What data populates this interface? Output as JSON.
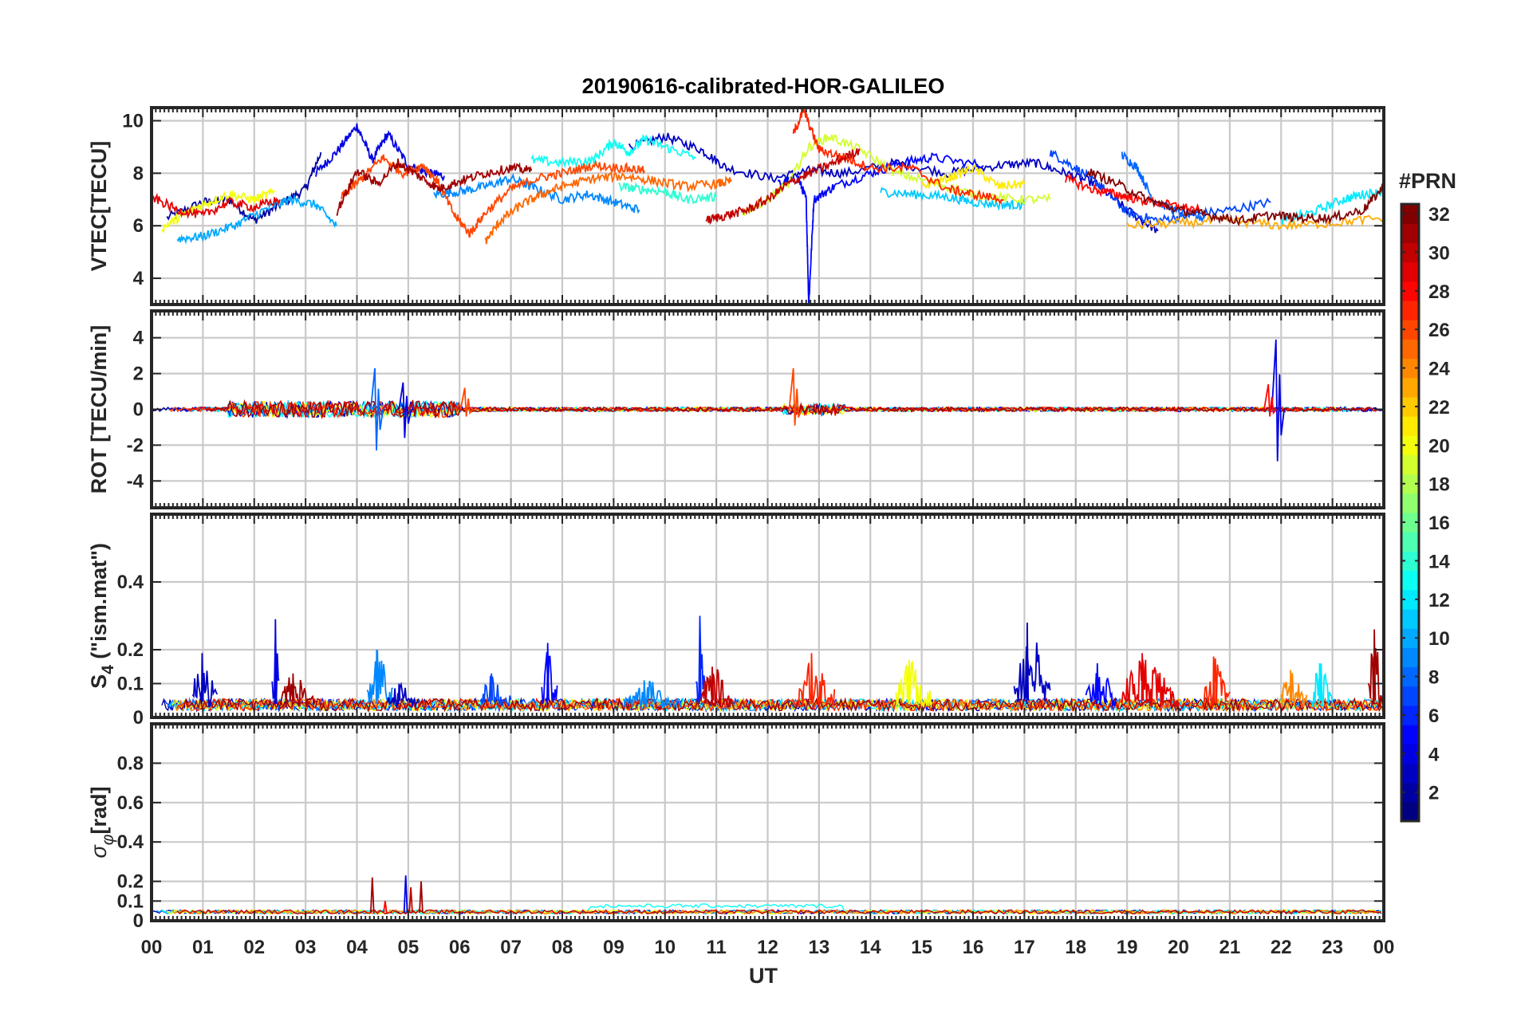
{
  "figure": {
    "title": "20190616-calibrated-HOR-GALILEO",
    "xlabel": "UT",
    "x_ticks": [
      "00",
      "01",
      "02",
      "03",
      "04",
      "05",
      "06",
      "07",
      "08",
      "09",
      "10",
      "11",
      "12",
      "13",
      "14",
      "15",
      "16",
      "17",
      "18",
      "19",
      "20",
      "21",
      "22",
      "23",
      "00"
    ]
  },
  "chart_data": [
    {
      "type": "line",
      "name": "vtec",
      "ylabel": "VTEC[TECU]",
      "xlim": [
        0,
        24
      ],
      "ylim": [
        3,
        10.5
      ],
      "yticks": [
        4,
        6,
        8,
        10
      ],
      "ytick_labels": [
        "4",
        "6",
        "8",
        "10"
      ],
      "grid": true,
      "series": [
        {
          "prn": 2,
          "x": [
            0.3,
            1.0,
            1.5,
            2.0,
            2.5,
            3.0,
            3.3
          ],
          "y": [
            6.3,
            6.9,
            7.0,
            6.2,
            6.8,
            7.4,
            8.8
          ]
        },
        {
          "prn": 4,
          "x": [
            3.2,
            3.6,
            4.0,
            4.3,
            4.6,
            5.0,
            5.4,
            5.7
          ],
          "y": [
            8.0,
            8.8,
            9.8,
            8.5,
            9.5,
            8.3,
            8.0,
            7.9
          ]
        },
        {
          "prn": 3,
          "x": [
            9.3,
            10.0,
            10.7,
            11.2,
            12.1,
            12.8,
            13.5,
            14.5,
            15.5,
            16.5,
            17.2,
            17.8,
            18.4,
            19.0,
            19.6
          ],
          "y": [
            9.0,
            9.4,
            8.9,
            8.2,
            7.8,
            8.1,
            8.0,
            8.4,
            8.0,
            8.3,
            8.4,
            8.0,
            7.6,
            6.6,
            5.8
          ]
        },
        {
          "prn": 5,
          "x": [
            12.2,
            12.6,
            12.75,
            12.8,
            12.9,
            13.3,
            14.0,
            14.6,
            15.2,
            16.2
          ],
          "y": [
            7.6,
            7.8,
            7.0,
            3.0,
            7.0,
            7.5,
            8.0,
            8.4,
            8.6,
            8.3
          ]
        },
        {
          "prn": 7,
          "x": [
            17.5,
            18.0,
            18.5,
            19.0,
            19.6,
            20.2,
            21.0,
            21.8
          ],
          "y": [
            8.8,
            8.2,
            7.5,
            6.5,
            6.2,
            6.4,
            6.6,
            6.9
          ]
        },
        {
          "prn": 9,
          "x": [
            5.5,
            6.0,
            6.5,
            7.0,
            7.5,
            8.0,
            8.5,
            9.0,
            9.5
          ],
          "y": [
            7.2,
            7.3,
            7.5,
            7.8,
            7.4,
            7.0,
            7.2,
            6.9,
            6.6
          ]
        },
        {
          "prn": 8,
          "x": [
            18.9,
            19.2,
            19.5,
            20.0,
            20.5
          ],
          "y": [
            8.7,
            8.2,
            7.0,
            6.5,
            6.3
          ]
        },
        {
          "prn": 10,
          "x": [
            0.5,
            1.0,
            1.6,
            2.2,
            2.7,
            3.2,
            3.6
          ],
          "y": [
            5.5,
            5.6,
            6.0,
            6.6,
            7.0,
            6.8,
            6.0
          ]
        },
        {
          "prn": 11,
          "x": [
            14.2,
            14.8,
            15.5,
            16.0,
            16.6,
            17.0
          ],
          "y": [
            7.3,
            7.2,
            7.1,
            6.9,
            6.8,
            6.8
          ]
        },
        {
          "prn": 12,
          "x": [
            22.0,
            22.6,
            23.2,
            23.6,
            24.0
          ],
          "y": [
            6.2,
            6.5,
            7.0,
            7.2,
            7.3
          ]
        },
        {
          "prn": 13,
          "x": [
            7.4,
            8.0,
            8.6,
            9.0,
            9.3,
            9.6,
            10.0,
            10.6
          ],
          "y": [
            8.5,
            8.4,
            8.5,
            9.2,
            8.8,
            9.3,
            9.0,
            8.6
          ]
        },
        {
          "prn": 14,
          "x": [
            9.1,
            9.5,
            10.0,
            10.4,
            11.0
          ],
          "y": [
            7.5,
            7.4,
            7.3,
            7.0,
            7.1
          ]
        },
        {
          "prn": 20,
          "x": [
            0.2,
            0.6,
            1.0,
            1.5,
            2.0,
            2.4
          ],
          "y": [
            5.9,
            6.4,
            6.8,
            7.2,
            7.0,
            7.3
          ]
        },
        {
          "prn": 19,
          "x": [
            11.5,
            12.0,
            12.4,
            12.8,
            13.2,
            13.8,
            14.5,
            15.3,
            16.0,
            16.8,
            17.5
          ],
          "y": [
            6.5,
            7.0,
            7.6,
            9.0,
            9.4,
            8.9,
            8.0,
            7.6,
            7.2,
            7.0,
            7.0
          ]
        },
        {
          "prn": 21,
          "x": [
            15.0,
            15.5,
            16.0,
            16.5,
            17.0
          ],
          "y": [
            7.5,
            7.8,
            8.2,
            7.5,
            7.6
          ]
        },
        {
          "prn": 23,
          "x": [
            19.0,
            20.0,
            21.0,
            22.0,
            23.0,
            24.0
          ],
          "y": [
            6.0,
            6.1,
            6.2,
            6.0,
            6.1,
            6.3
          ]
        },
        {
          "prn": 25,
          "x": [
            6.5,
            6.8,
            7.2,
            7.6,
            8.0,
            8.6,
            9.2,
            9.8,
            10.4,
            11.0,
            11.3
          ],
          "y": [
            5.4,
            6.2,
            6.8,
            7.2,
            7.5,
            7.8,
            7.9,
            7.7,
            7.5,
            7.6,
            7.7
          ]
        },
        {
          "prn": 26,
          "x": [
            3.7,
            4.1,
            4.5,
            4.9,
            5.3,
            5.6,
            5.9,
            6.2,
            6.5,
            7.0,
            7.5,
            8.0,
            8.6,
            9.2,
            9.6
          ],
          "y": [
            7.1,
            7.8,
            8.6,
            8.0,
            8.3,
            7.6,
            6.4,
            5.7,
            6.5,
            7.4,
            7.8,
            8.0,
            8.3,
            8.2,
            8.1
          ]
        },
        {
          "prn": 27,
          "x": [
            12.5,
            12.7,
            13.0,
            13.5,
            14.0,
            14.8,
            15.5,
            16.0,
            16.6
          ],
          "y": [
            9.5,
            10.4,
            8.9,
            8.6,
            8.2,
            8.2,
            7.4,
            7.2,
            7.0
          ]
        },
        {
          "prn": 28,
          "x": [
            17.8,
            18.3,
            18.8,
            19.2,
            19.8,
            20.4
          ],
          "y": [
            7.8,
            7.4,
            7.2,
            7.0,
            6.8,
            6.6
          ]
        },
        {
          "prn": 29,
          "x": [
            0.0,
            0.5,
            1.0,
            1.5,
            2.0,
            2.5
          ],
          "y": [
            7.1,
            6.6,
            6.4,
            6.9,
            6.7,
            7.0
          ]
        },
        {
          "prn": 30,
          "x": [
            10.8,
            11.2,
            11.6,
            12.0,
            12.4,
            12.8,
            13.3,
            13.8
          ],
          "y": [
            6.2,
            6.4,
            6.6,
            7.0,
            7.6,
            8.0,
            8.4,
            8.9
          ]
        },
        {
          "prn": 31,
          "x": [
            3.6,
            4.0,
            4.4,
            4.8,
            5.2,
            5.6,
            6.0,
            6.5,
            7.0,
            7.4
          ],
          "y": [
            6.5,
            8.1,
            7.6,
            8.4,
            7.9,
            7.4,
            7.7,
            8.0,
            8.2,
            8.1
          ]
        },
        {
          "prn": 32,
          "x": [
            18.2,
            18.8,
            19.4,
            20.0,
            20.6,
            21.2,
            21.8,
            22.4,
            23.0,
            23.6,
            24.0
          ],
          "y": [
            8.1,
            7.6,
            7.0,
            6.6,
            6.4,
            6.2,
            6.4,
            6.3,
            6.3,
            6.6,
            7.5
          ]
        }
      ]
    },
    {
      "type": "line",
      "name": "rot",
      "ylabel": "ROT [TECU/min]",
      "xlim": [
        0,
        24
      ],
      "ylim": [
        -5.5,
        5.5
      ],
      "yticks": [
        -4,
        -2,
        0,
        2,
        4
      ],
      "ytick_labels": [
        "-4",
        "-2",
        "0",
        "2",
        "4"
      ],
      "grid": true,
      "spikes": [
        {
          "prn": 8,
          "x": 4.35,
          "min": -2.3,
          "max": 2.3
        },
        {
          "prn": 4,
          "x": 4.9,
          "min": -1.6,
          "max": 1.5
        },
        {
          "prn": 26,
          "x": 12.5,
          "min": -0.9,
          "max": 2.3
        },
        {
          "prn": 4,
          "x": 21.9,
          "min": -2.9,
          "max": 3.9
        },
        {
          "prn": 28,
          "x": 21.75,
          "min": -0.4,
          "max": 1.4
        },
        {
          "prn": 26,
          "x": 6.1,
          "min": -0.4,
          "max": 1.2
        }
      ]
    },
    {
      "type": "line",
      "name": "s4",
      "ylabel": "S4 (\"ism.mat\")",
      "ylabel_main": "S",
      "ylabel_sub": "4",
      "ylabel_rest": " (\"ism.mat\")",
      "xlim": [
        0,
        24
      ],
      "ylim": [
        0,
        0.6
      ],
      "yticks": [
        0,
        0.1,
        0.2,
        0.4
      ],
      "ytick_labels": [
        "0",
        "0.1",
        "0.2",
        "0.4"
      ],
      "grid": true,
      "bursts": [
        {
          "prn": 3,
          "x0": 0.8,
          "x1": 1.3,
          "peak": 0.19
        },
        {
          "prn": 4,
          "x0": 2.35,
          "x1": 2.5,
          "peak": 0.29
        },
        {
          "prn": 31,
          "x0": 2.5,
          "x1": 3.2,
          "peak": 0.13
        },
        {
          "prn": 9,
          "x0": 4.2,
          "x1": 4.7,
          "peak": 0.2
        },
        {
          "prn": 3,
          "x0": 4.6,
          "x1": 5.2,
          "peak": 0.1
        },
        {
          "prn": 7,
          "x0": 6.4,
          "x1": 7.0,
          "peak": 0.13
        },
        {
          "prn": 5,
          "x0": 7.6,
          "x1": 7.9,
          "peak": 0.22
        },
        {
          "prn": 9,
          "x0": 9.2,
          "x1": 10.3,
          "peak": 0.11
        },
        {
          "prn": 6,
          "x0": 10.6,
          "x1": 10.8,
          "peak": 0.3
        },
        {
          "prn": 30,
          "x0": 10.7,
          "x1": 11.3,
          "peak": 0.15
        },
        {
          "prn": 27,
          "x0": 12.6,
          "x1": 13.3,
          "peak": 0.19
        },
        {
          "prn": 20,
          "x0": 14.5,
          "x1": 15.2,
          "peak": 0.17
        },
        {
          "prn": 3,
          "x0": 16.8,
          "x1": 17.5,
          "peak": 0.28
        },
        {
          "prn": 5,
          "x0": 18.2,
          "x1": 18.8,
          "peak": 0.16
        },
        {
          "prn": 29,
          "x0": 18.9,
          "x1": 20.0,
          "peak": 0.19
        },
        {
          "prn": 27,
          "x0": 20.5,
          "x1": 21.0,
          "peak": 0.18
        },
        {
          "prn": 24,
          "x0": 22.0,
          "x1": 22.5,
          "peak": 0.14
        },
        {
          "prn": 12,
          "x0": 22.6,
          "x1": 23.0,
          "peak": 0.16
        },
        {
          "prn": 31,
          "x0": 23.7,
          "x1": 24.0,
          "peak": 0.26
        }
      ]
    },
    {
      "type": "line",
      "name": "sigma",
      "ylabel": "σφ[rad]",
      "ylabel_main": "σ",
      "ylabel_sub": "φ",
      "ylabel_rest": "[rad]",
      "xlim": [
        0,
        24
      ],
      "ylim": [
        0,
        1.0
      ],
      "yticks": [
        0,
        0.1,
        0.2,
        0.4,
        0.6,
        0.8
      ],
      "ytick_labels": [
        "0",
        "0.1",
        "0.2",
        "0.4",
        "0.6",
        "0.8"
      ],
      "grid": true,
      "spikes": [
        {
          "prn": 31,
          "x": 4.3,
          "max": 0.22
        },
        {
          "prn": 4,
          "x": 4.95,
          "max": 0.23
        },
        {
          "prn": 30,
          "x": 5.05,
          "max": 0.17
        },
        {
          "prn": 31,
          "x": 5.25,
          "max": 0.2
        },
        {
          "prn": 28,
          "x": 4.55,
          "max": 0.1
        }
      ]
    }
  ],
  "colorbar": {
    "label": "#PRN",
    "range": [
      1,
      32
    ],
    "ticks": [
      2,
      4,
      6,
      8,
      10,
      12,
      14,
      16,
      18,
      20,
      22,
      24,
      26,
      28,
      30,
      32
    ],
    "tick_labels": [
      "2",
      "4",
      "6",
      "8",
      "10",
      "12",
      "14",
      "16",
      "18",
      "20",
      "22",
      "24",
      "26",
      "28",
      "30",
      "32"
    ],
    "colormap": "jet",
    "levels": 32
  }
}
